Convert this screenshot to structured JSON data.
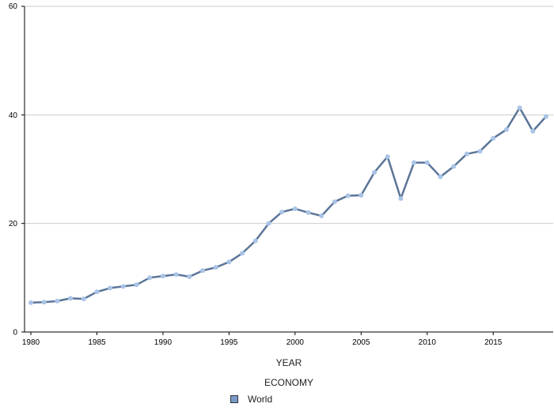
{
  "chart_data": {
    "type": "line",
    "xlabel": "YEAR",
    "legend_title": "ECONOMY",
    "x_ticks": [
      1980,
      1985,
      1990,
      1995,
      2000,
      2005,
      2010,
      2015
    ],
    "y_ticks": [
      0,
      20,
      40,
      60
    ],
    "xlim": [
      1980,
      2019
    ],
    "ylim": [
      0,
      60
    ],
    "grid": "horizontal",
    "legend_position": "bottom",
    "line_color": "#5b7598",
    "marker_color": "#aac4e6",
    "series": [
      {
        "name": "World",
        "x": [
          1980,
          1981,
          1982,
          1983,
          1984,
          1985,
          1986,
          1987,
          1988,
          1989,
          1990,
          1991,
          1992,
          1993,
          1994,
          1995,
          1996,
          1997,
          1998,
          1999,
          2000,
          2001,
          2002,
          2003,
          2004,
          2005,
          2006,
          2007,
          2008,
          2009,
          2010,
          2011,
          2012,
          2013,
          2014,
          2015,
          2016,
          2017,
          2018,
          2019
        ],
        "values": [
          5.4,
          5.5,
          5.7,
          6.2,
          6.1,
          7.4,
          8.1,
          8.4,
          8.7,
          10.0,
          10.3,
          10.6,
          10.2,
          11.3,
          11.9,
          12.9,
          14.5,
          16.8,
          20.0,
          22.1,
          22.7,
          22.0,
          21.4,
          24.0,
          25.1,
          25.2,
          29.4,
          32.3,
          24.6,
          31.2,
          31.2,
          28.6,
          30.5,
          32.8,
          33.3,
          35.7,
          37.3,
          41.3,
          37.0,
          39.7
        ]
      }
    ]
  }
}
